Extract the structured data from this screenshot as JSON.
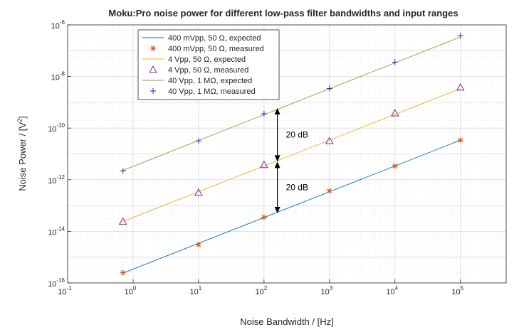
{
  "chart_data": {
    "type": "line",
    "title": "Moku:Pro noise power for different low-pass filter bandwidths and input ranges",
    "xlabel": "Noise Bandwidth / [Hz]",
    "ylabel_main": "Noise Power / [V",
    "ylabel_sup": "2",
    "ylabel_end": "]",
    "xscale": "log",
    "yscale": "log",
    "xlim": [
      0.1,
      500000
    ],
    "ylim": [
      1e-16,
      1e-06
    ],
    "grid": true,
    "legend_position": "top-left",
    "x_ticks": [
      {
        "base": "10",
        "exp": "-1",
        "value": 0.1
      },
      {
        "base": "10",
        "exp": "0",
        "value": 1
      },
      {
        "base": "10",
        "exp": "1",
        "value": 10
      },
      {
        "base": "10",
        "exp": "2",
        "value": 100
      },
      {
        "base": "10",
        "exp": "3",
        "value": 1000
      },
      {
        "base": "10",
        "exp": "4",
        "value": 10000
      },
      {
        "base": "10",
        "exp": "5",
        "value": 100000
      }
    ],
    "y_ticks": [
      {
        "base": "10",
        "exp": "-16",
        "value": 1e-16
      },
      {
        "base": "10",
        "exp": "-14",
        "value": 1e-14
      },
      {
        "base": "10",
        "exp": "-12",
        "value": 1e-12
      },
      {
        "base": "10",
        "exp": "-10",
        "value": 1e-10
      },
      {
        "base": "10",
        "exp": "-8",
        "value": 1e-08
      },
      {
        "base": "10",
        "exp": "-6",
        "value": 1e-06
      }
    ],
    "series": [
      {
        "name": "400 mVpp, 50 Ω, expected",
        "style": "line",
        "color": "#0072BD",
        "x": [
          0.7,
          100000
        ],
        "y": [
          2.4e-16,
          3.4e-11
        ]
      },
      {
        "name": "400 mVpp, 50 Ω, measured",
        "style": "marker",
        "marker": "asterisk",
        "color": "#D95319",
        "x": [
          0.7,
          10,
          100,
          1000,
          10000,
          100000
        ],
        "y": [
          2.5e-16,
          3e-15,
          3.5e-14,
          3.7e-13,
          3.4e-12,
          3.4e-11
        ]
      },
      {
        "name": "4 Vpp, 50 Ω, expected",
        "style": "line",
        "color": "#EDB120",
        "x": [
          0.7,
          100000
        ],
        "y": [
          2.4e-14,
          3.4e-09
        ]
      },
      {
        "name": "4 Vpp, 50 Ω, measured",
        "style": "marker",
        "marker": "triangle",
        "color": "#7E2F8E",
        "x": [
          0.7,
          10,
          100,
          1000,
          10000,
          100000
        ],
        "y": [
          2.4e-14,
          3.2e-13,
          3.8e-12,
          3.2e-11,
          3.8e-10,
          3.8e-09
        ]
      },
      {
        "name": "40 Vpp, 1 MΩ, expected",
        "style": "line",
        "color": "#77AC30",
        "x": [
          0.7,
          100000
        ],
        "y": [
          2.3e-12,
          3.4e-07
        ]
      },
      {
        "name": "40 Vpp, 1 MΩ, measured",
        "style": "marker",
        "marker": "plus",
        "color": "#1F1FCF",
        "x": [
          0.7,
          10,
          100,
          1000,
          10000,
          100000
        ],
        "y": [
          2.2e-12,
          3.2e-11,
          3.6e-10,
          3.4e-09,
          3.6e-08,
          3.8e-07
        ]
      }
    ],
    "annotations": [
      {
        "text": "20 dB",
        "x": 160,
        "y_from": 5e-12,
        "y_to": 6e-10
      },
      {
        "text": "20 dB",
        "x": 160,
        "y_from": 5e-14,
        "y_to": 5e-12
      }
    ]
  }
}
